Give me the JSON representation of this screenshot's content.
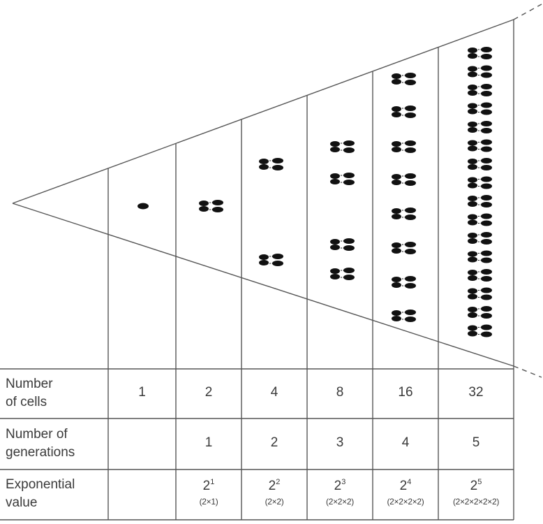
{
  "columns": [
    {
      "cells": "1",
      "generations": "",
      "exp_base": "",
      "exp_power": "",
      "exp_expansion": ""
    },
    {
      "cells": "2",
      "generations": "1",
      "exp_base": "2",
      "exp_power": "1",
      "exp_expansion": "(2×1)"
    },
    {
      "cells": "4",
      "generations": "2",
      "exp_base": "2",
      "exp_power": "2",
      "exp_expansion": "(2×2)"
    },
    {
      "cells": "8",
      "generations": "3",
      "exp_base": "2",
      "exp_power": "3",
      "exp_expansion": "(2×2×2)"
    },
    {
      "cells": "16",
      "generations": "4",
      "exp_base": "2",
      "exp_power": "4",
      "exp_expansion": "(2×2×2×2)"
    },
    {
      "cells": "32",
      "generations": "5",
      "exp_base": "2",
      "exp_power": "5",
      "exp_expansion": "(2×2×2×2×2)"
    }
  ],
  "row_labels": {
    "cells": "Number\nof cells",
    "generations": "Number of\ngenerations",
    "exponential": "Exponential\nvalue"
  },
  "colors": {
    "line": "#555555",
    "cell": "#111111"
  }
}
